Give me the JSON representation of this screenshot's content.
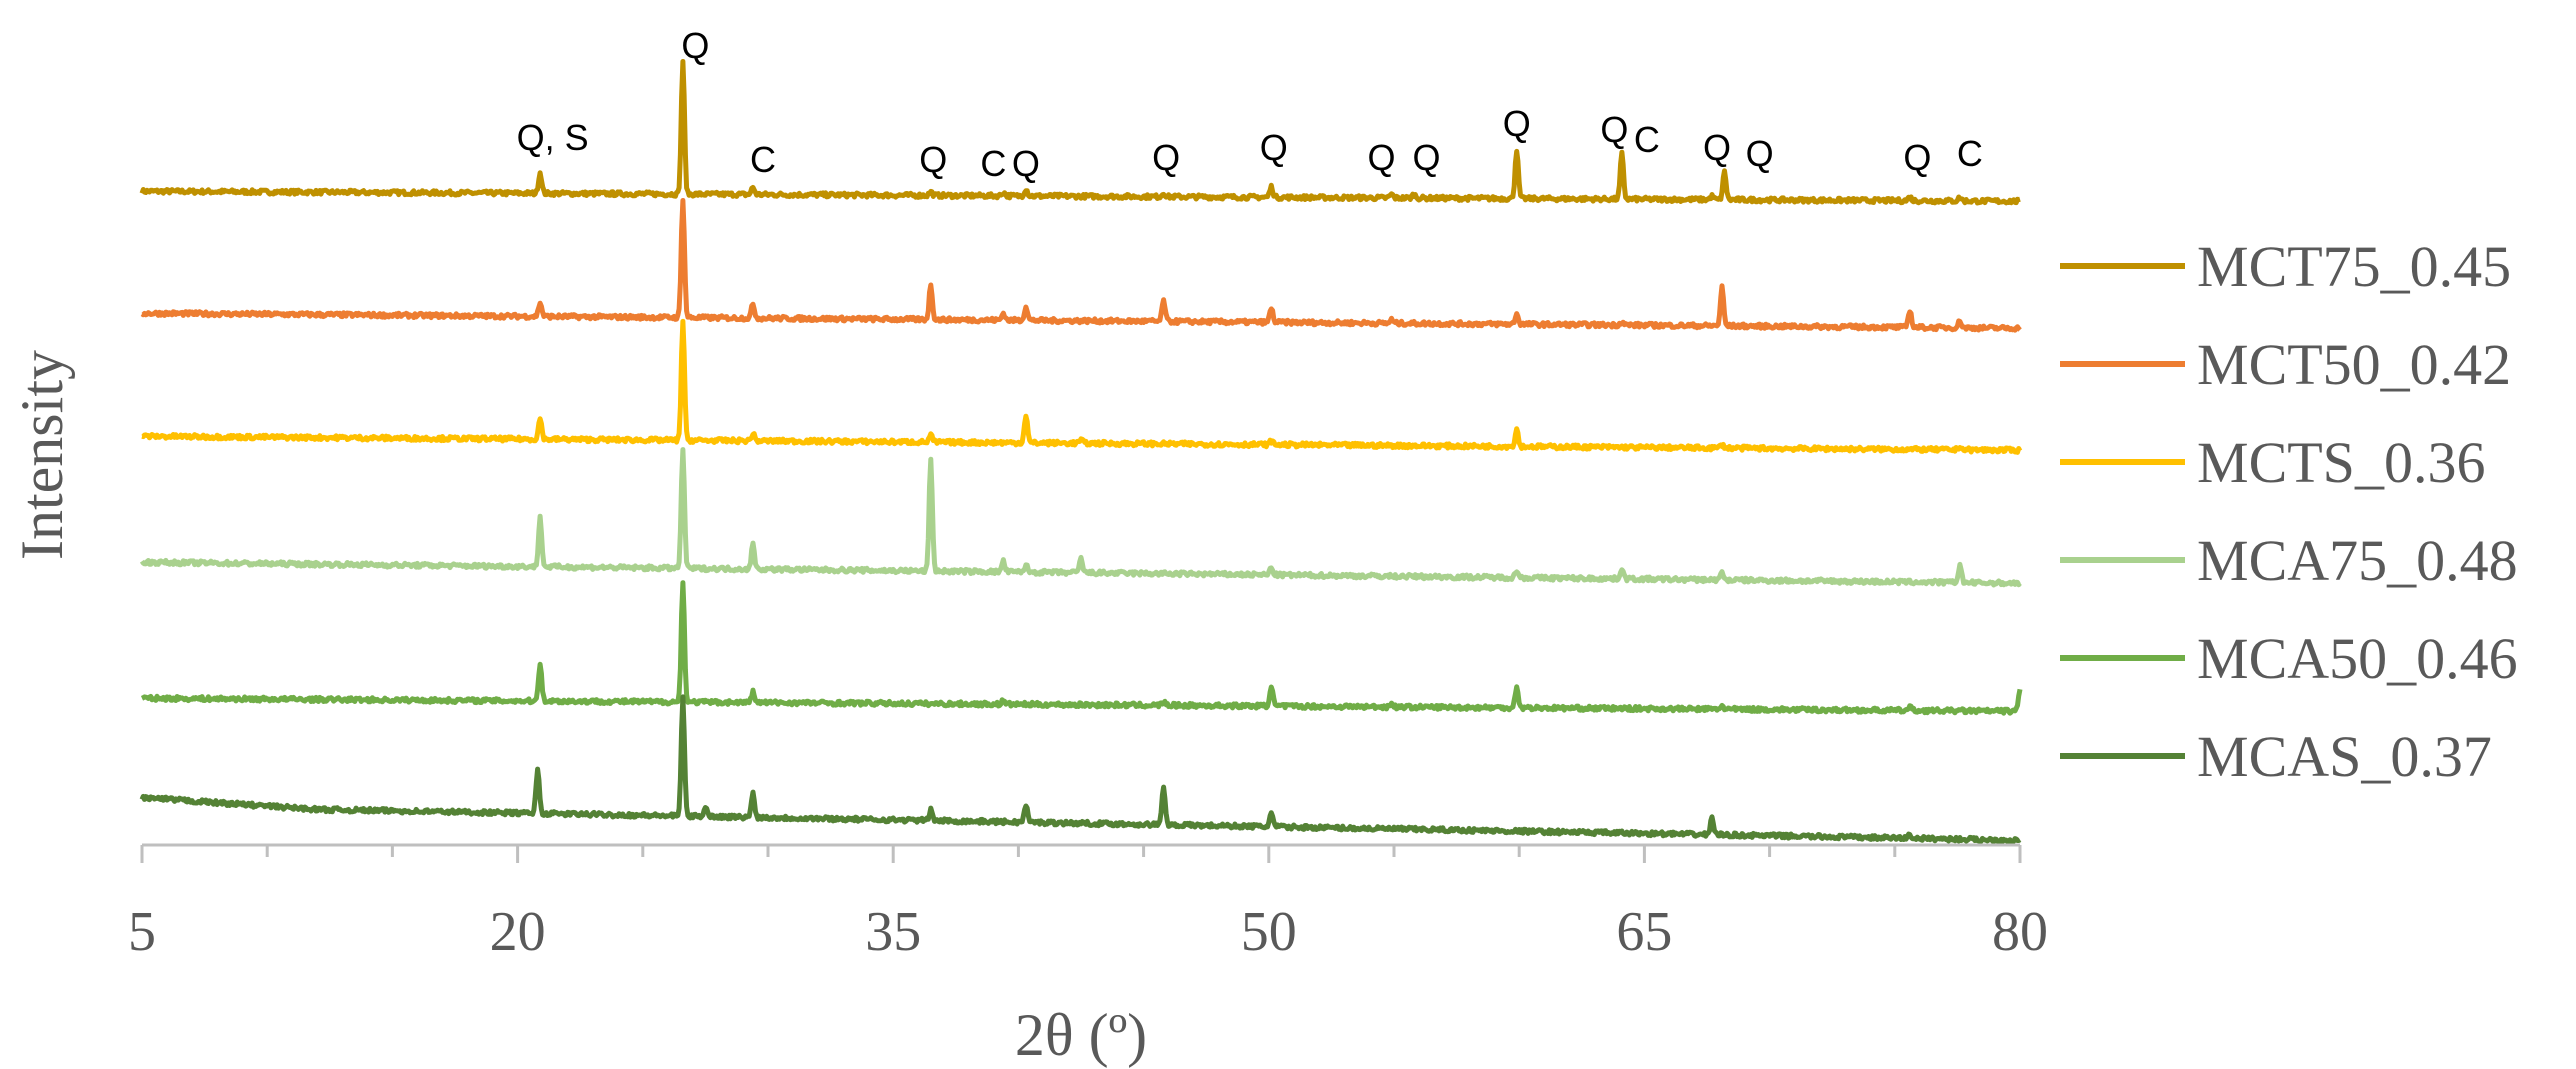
{
  "chart_data": {
    "type": "line",
    "xlabel": "2θ (º)",
    "ylabel": "Intensity",
    "xlim": [
      5,
      80
    ],
    "x_ticks": [
      "5",
      "20",
      "35",
      "50",
      "65",
      "80"
    ],
    "y_ticks_shown": false,
    "grid": false,
    "legend_position": "right",
    "series": [
      {
        "name": "MCT75_0.45",
        "color": "#BF9000",
        "baseline": 0.5,
        "peaks": [
          [
            20.9,
            6
          ],
          [
            26.6,
            38
          ],
          [
            29.4,
            2
          ],
          [
            36.5,
            1
          ],
          [
            39.4,
            1
          ],
          [
            40.3,
            2
          ],
          [
            45.8,
            1
          ],
          [
            50.1,
            3
          ],
          [
            54.9,
            1
          ],
          [
            55.8,
            1
          ],
          [
            59.9,
            14
          ],
          [
            64.1,
            13
          ],
          [
            67.7,
            1
          ],
          [
            68.2,
            8
          ],
          [
            75.6,
            1
          ],
          [
            77.6,
            1
          ]
        ]
      },
      {
        "name": "MCT50_0.42",
        "color": "#ED7D31",
        "baseline": 0.5,
        "peaks": [
          [
            20.9,
            4
          ],
          [
            26.6,
            34
          ],
          [
            29.4,
            4
          ],
          [
            36.5,
            10
          ],
          [
            39.4,
            2
          ],
          [
            40.3,
            4
          ],
          [
            45.8,
            6
          ],
          [
            50.1,
            4
          ],
          [
            54.9,
            1
          ],
          [
            59.9,
            3
          ],
          [
            64.1,
            1
          ],
          [
            68.1,
            11
          ],
          [
            75.6,
            5
          ],
          [
            77.6,
            2
          ]
        ]
      },
      {
        "name": "MCTS_0.36",
        "color": "#FFC000",
        "baseline": 0.5,
        "peaks": [
          [
            20.9,
            6
          ],
          [
            26.6,
            34
          ],
          [
            29.4,
            2
          ],
          [
            36.5,
            2
          ],
          [
            40.3,
            8
          ],
          [
            42.5,
            1
          ],
          [
            50.1,
            1
          ],
          [
            59.9,
            5
          ],
          [
            68.1,
            1
          ],
          [
            77.6,
            1
          ]
        ]
      },
      {
        "name": "MCA75_0.48",
        "color": "#A9D18E",
        "baseline": 0.5,
        "peaks": [
          [
            20.9,
            14
          ],
          [
            26.6,
            34
          ],
          [
            29.4,
            7
          ],
          [
            36.5,
            32
          ],
          [
            39.4,
            3
          ],
          [
            40.3,
            2
          ],
          [
            42.5,
            4
          ],
          [
            50.1,
            2
          ],
          [
            59.9,
            2
          ],
          [
            64.1,
            3
          ],
          [
            68.1,
            2
          ],
          [
            77.6,
            5
          ]
        ]
      },
      {
        "name": "MCA50_0.46",
        "color": "#70AD47",
        "baseline": 0.5,
        "peaks": [
          [
            20.9,
            11
          ],
          [
            26.6,
            34
          ],
          [
            29.4,
            3
          ],
          [
            39.4,
            1
          ],
          [
            45.8,
            1
          ],
          [
            50.1,
            6
          ],
          [
            54.9,
            1
          ],
          [
            59.9,
            6
          ],
          [
            68.1,
            1
          ],
          [
            75.6,
            1
          ],
          [
            80.0,
            6
          ]
        ]
      },
      {
        "name": "MCAS_0.37",
        "color": "#548235",
        "baseline": 0.5,
        "peaks": [
          [
            20.8,
            13
          ],
          [
            26.6,
            34
          ],
          [
            27.5,
            3
          ],
          [
            29.4,
            7
          ],
          [
            36.5,
            3
          ],
          [
            40.3,
            5
          ],
          [
            45.8,
            11
          ],
          [
            50.1,
            4
          ],
          [
            67.7,
            5
          ],
          [
            75.6,
            1
          ]
        ]
      }
    ],
    "annotations": [
      {
        "text": "Q, S",
        "x": 21.4
      },
      {
        "text": "Q",
        "x": 27.1
      },
      {
        "text": "C",
        "x": 29.8
      },
      {
        "text": "Q",
        "x": 36.6
      },
      {
        "text": "C",
        "x": 39.0
      },
      {
        "text": "Q",
        "x": 40.3
      },
      {
        "text": "Q",
        "x": 45.9
      },
      {
        "text": "Q",
        "x": 50.2
      },
      {
        "text": "Q",
        "x": 54.5
      },
      {
        "text": "Q",
        "x": 56.3
      },
      {
        "text": "Q",
        "x": 59.9
      },
      {
        "text": "Q",
        "x": 63.8
      },
      {
        "text": "C",
        "x": 65.1
      },
      {
        "text": "Q",
        "x": 67.9
      },
      {
        "text": "Q",
        "x": 69.6
      },
      {
        "text": "Q",
        "x": 75.9
      },
      {
        "text": "C",
        "x": 78.0
      }
    ]
  }
}
